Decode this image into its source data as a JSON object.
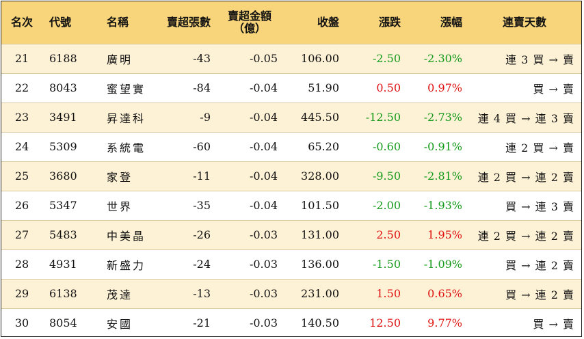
{
  "headers": {
    "rank": "名次",
    "code": "代號",
    "name": "名稱",
    "net_sell_lots": "賣超張數",
    "net_sell_amount_line1": "賣超金額",
    "net_sell_amount_line2": "（億）",
    "close": "收盤",
    "change": "漲跌",
    "change_pct": "漲幅",
    "streak": "連賣天數"
  },
  "colors": {
    "header_bg": "#f8d57a",
    "odd_row_bg": "#fdf1d6",
    "up": "#e01010",
    "down": "#139a1a"
  },
  "rows": [
    {
      "rank": "21",
      "code": "6188",
      "name": "廣明",
      "lots": "-43",
      "amount": "-0.05",
      "close": "106.00",
      "change": "-2.50",
      "pct": "-2.30%",
      "direction": "down",
      "streak": "連 3 買 → 賣"
    },
    {
      "rank": "22",
      "code": "8043",
      "name": "蜜望實",
      "lots": "-84",
      "amount": "-0.04",
      "close": "51.90",
      "change": "0.50",
      "pct": "0.97%",
      "direction": "up",
      "streak": "買 → 賣"
    },
    {
      "rank": "23",
      "code": "3491",
      "name": "昇達科",
      "lots": "-9",
      "amount": "-0.04",
      "close": "445.50",
      "change": "-12.50",
      "pct": "-2.73%",
      "direction": "down",
      "streak": "連 4 買 → 連 3 賣"
    },
    {
      "rank": "24",
      "code": "5309",
      "name": "系統電",
      "lots": "-60",
      "amount": "-0.04",
      "close": "65.20",
      "change": "-0.60",
      "pct": "-0.91%",
      "direction": "down",
      "streak": "連 2 買 → 賣"
    },
    {
      "rank": "25",
      "code": "3680",
      "name": "家登",
      "lots": "-11",
      "amount": "-0.04",
      "close": "328.00",
      "change": "-9.50",
      "pct": "-2.81%",
      "direction": "down",
      "streak": "連 2 買 → 連 2 賣"
    },
    {
      "rank": "26",
      "code": "5347",
      "name": "世界",
      "lots": "-35",
      "amount": "-0.04",
      "close": "101.50",
      "change": "-2.00",
      "pct": "-1.93%",
      "direction": "down",
      "streak": "買 → 連 3 賣"
    },
    {
      "rank": "27",
      "code": "5483",
      "name": "中美晶",
      "lots": "-26",
      "amount": "-0.03",
      "close": "131.00",
      "change": "2.50",
      "pct": "1.95%",
      "direction": "up",
      "streak": "連 2 買 → 連 2 賣"
    },
    {
      "rank": "28",
      "code": "4931",
      "name": "新盛力",
      "lots": "-24",
      "amount": "-0.03",
      "close": "136.00",
      "change": "-1.50",
      "pct": "-1.09%",
      "direction": "down",
      "streak": "買 → 連 2 賣"
    },
    {
      "rank": "29",
      "code": "6138",
      "name": "茂達",
      "lots": "-13",
      "amount": "-0.03",
      "close": "231.00",
      "change": "1.50",
      "pct": "0.65%",
      "direction": "up",
      "streak": "買 → 連 2 賣"
    },
    {
      "rank": "30",
      "code": "8054",
      "name": "安國",
      "lots": "-21",
      "amount": "-0.03",
      "close": "140.50",
      "change": "12.50",
      "pct": "9.77%",
      "direction": "up",
      "streak": "買 → 賣"
    }
  ]
}
